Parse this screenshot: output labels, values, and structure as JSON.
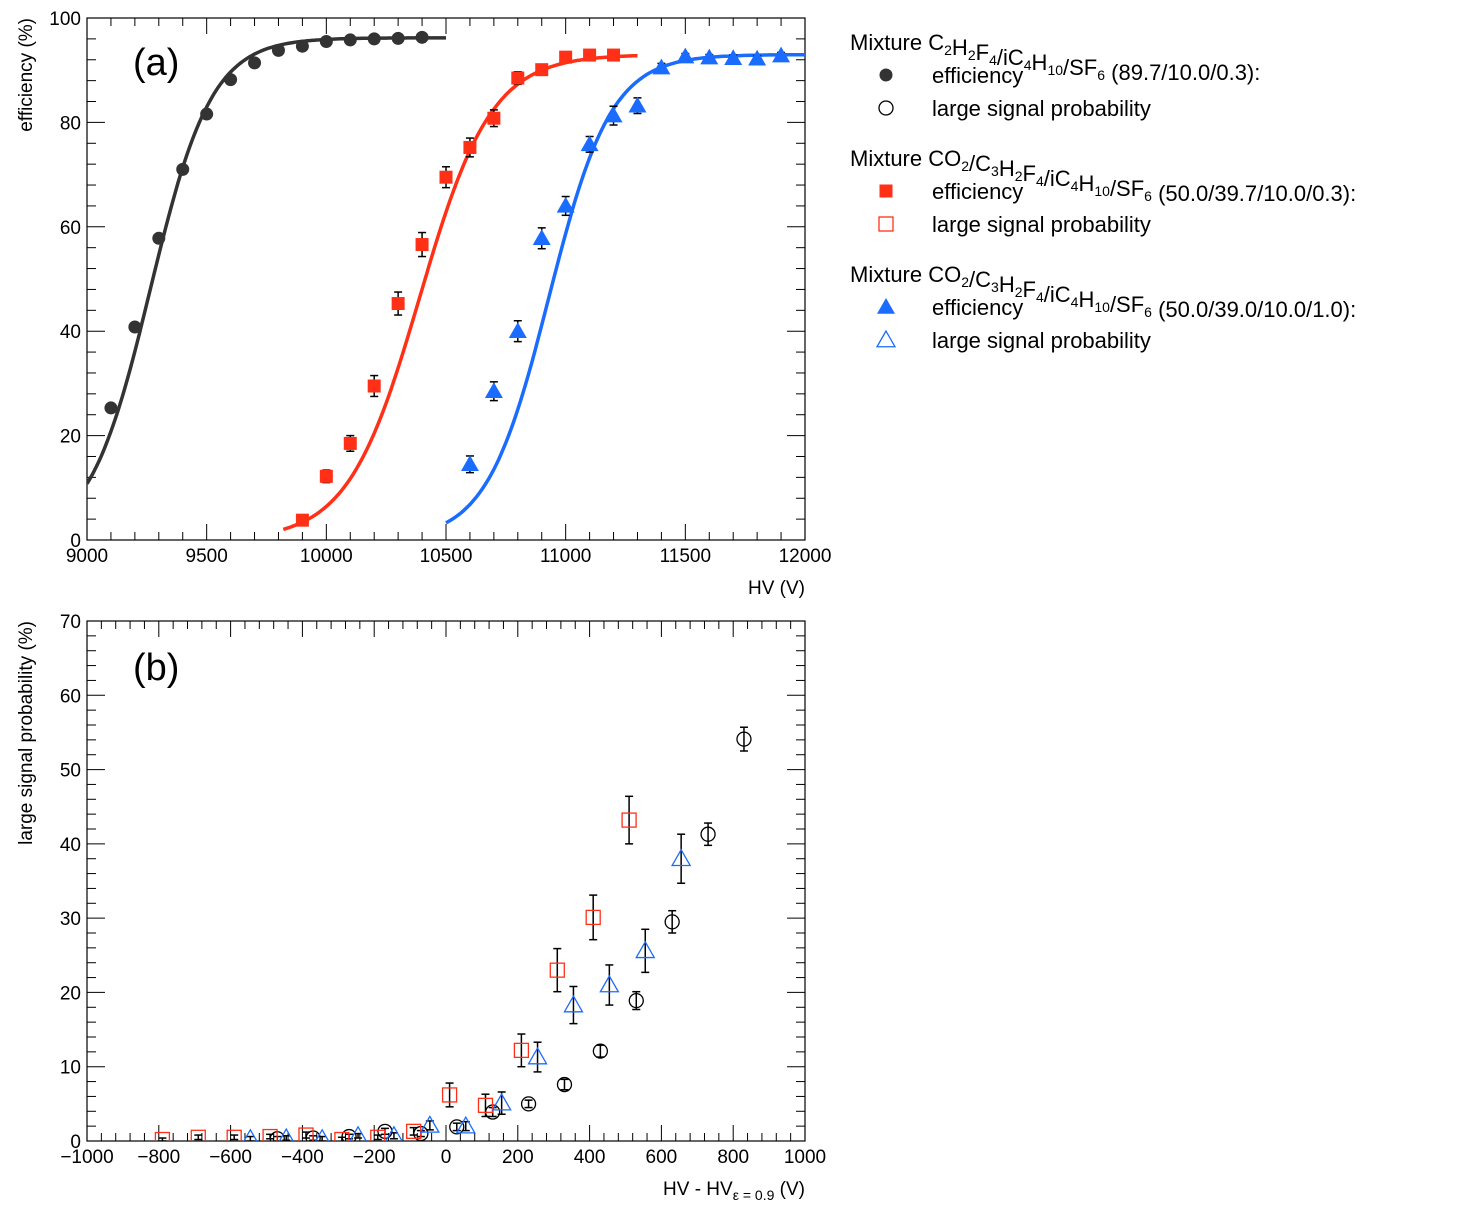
{
  "chart_data": [
    {
      "id": "a",
      "type": "scatter",
      "panel_label": "(a)",
      "xlabel": "HV (V)",
      "ylabel": "efficiency (%)",
      "xlim": [
        9000,
        12000
      ],
      "ylim": [
        0,
        100
      ],
      "xticks": [
        "9000",
        "9500",
        "10000",
        "10500",
        "11000",
        "11500",
        "12000"
      ],
      "yticks": [
        "0",
        "20",
        "40",
        "60",
        "80",
        "100"
      ],
      "series": [
        {
          "name": "Mixture C2H2F4/iC4H10/SF6 (89.7/10.0/0.3): efficiency",
          "marker": "filled-circle",
          "color": "#333333",
          "x": [
            9100,
            9200,
            9300,
            9400,
            9500,
            9600,
            9700,
            9800,
            9900,
            10000,
            10100,
            10200,
            10300,
            10400
          ],
          "y": [
            25.3,
            40.8,
            57.8,
            71.0,
            81.6,
            88.2,
            91.4,
            93.8,
            94.6,
            95.5,
            95.8,
            96.0,
            96.1,
            96.3
          ],
          "fit": {
            "x_range": [
              9000,
              10500
            ],
            "max": 96.2,
            "mid": 9265,
            "width": 128
          }
        },
        {
          "name": "Mixture CO2/C3H2F4/iC4H10/SF6 (50.0/39.7/10.0/0.3): efficiency",
          "marker": "filled-square",
          "color": "#ff3016",
          "x": [
            9900,
            10000,
            10100,
            10200,
            10300,
            10400,
            10500,
            10600,
            10700,
            10800,
            10900,
            11000,
            11100,
            11200
          ],
          "y": [
            3.8,
            12.2,
            18.5,
            29.5,
            45.3,
            56.6,
            69.5,
            75.2,
            80.8,
            88.5,
            90.1,
            92.5,
            92.9,
            92.9
          ],
          "err": [
            0.6,
            1.2,
            1.5,
            2.0,
            2.2,
            2.3,
            2.0,
            1.8,
            1.6,
            1.2,
            1.0,
            0.8,
            0.8,
            0.8
          ],
          "fit": {
            "x_range": [
              9820,
              11300
            ],
            "max": 93.0,
            "mid": 10390,
            "width": 150
          }
        },
        {
          "name": "Mixture CO2/C3H2F4/iC4H10/SF6 (50.0/39.0/10.0/1.0): efficiency",
          "marker": "filled-triangle",
          "color": "#1a6cff",
          "x": [
            10600,
            10700,
            10800,
            10900,
            11000,
            11100,
            11200,
            11300,
            11400,
            11500,
            11600,
            11700,
            11800,
            11900
          ],
          "y": [
            14.5,
            28.5,
            40.0,
            57.8,
            64.0,
            75.8,
            81.3,
            83.2,
            90.5,
            92.6,
            92.4,
            92.3,
            92.2,
            92.8
          ],
          "err": [
            1.6,
            1.8,
            2.0,
            2.0,
            1.8,
            1.5,
            1.8,
            1.5,
            0.8,
            0.6,
            0.6,
            0.6,
            0.6,
            0.6
          ],
          "fit": {
            "x_range": [
              10500,
              12000
            ],
            "max": 93.0,
            "mid": 10930,
            "width": 130
          }
        }
      ]
    },
    {
      "id": "b",
      "type": "scatter",
      "panel_label": "(b)",
      "xlabel": "HV - HV",
      "xlabel_sub": "ε = 0.9",
      "xlabel_unit": " (V)",
      "ylabel": "large signal probability (%)",
      "xlim": [
        -1000,
        1000
      ],
      "ylim": [
        0,
        70
      ],
      "xticks": [
        "−1000",
        "−800",
        "−600",
        "−400",
        "−200",
        "0",
        "200",
        "400",
        "600",
        "800",
        "1000"
      ],
      "yticks": [
        "0",
        "10",
        "20",
        "30",
        "40",
        "50",
        "60",
        "70"
      ],
      "series": [
        {
          "name": "Mixture C2H2F4/iC4H10/SF6 (89.7/10.0/0.3): large signal probability",
          "marker": "open-circle",
          "color": "#000000",
          "x": [
            -470,
            -370,
            -270,
            -170,
            -70,
            30,
            130,
            230,
            330,
            430,
            530,
            630,
            730,
            830
          ],
          "y": [
            0.3,
            0.4,
            0.6,
            1.3,
            1.0,
            1.9,
            3.9,
            5.0,
            7.6,
            12.1,
            18.9,
            29.5,
            41.3,
            54.1
          ],
          "err": [
            0.3,
            0.3,
            0.3,
            0.4,
            0.4,
            0.5,
            0.6,
            0.5,
            0.7,
            0.8,
            1.2,
            1.5,
            1.5,
            1.6
          ]
        },
        {
          "name": "Mixture CO2/C3H2F4/iC4H10/SF6 (50.0/39.7/10.0/0.3): large signal probability",
          "marker": "open-square",
          "color": "#ff3016",
          "x": [
            -790,
            -690,
            -590,
            -490,
            -390,
            -290,
            -190,
            -90,
            10,
            110,
            210,
            310,
            410,
            510
          ],
          "y": [
            0.2,
            0.5,
            0.5,
            0.6,
            0.8,
            0.2,
            0.5,
            1.3,
            6.2,
            4.8,
            12.2,
            23.0,
            30.1,
            43.2
          ],
          "err": [
            0.2,
            0.3,
            0.3,
            0.3,
            0.4,
            0.3,
            0.3,
            0.5,
            1.6,
            1.5,
            2.2,
            2.9,
            3.0,
            3.2
          ]
        },
        {
          "name": "Mixture CO2/C3H2F4/iC4H10/SF6 (50.0/39.0/10.0/1.0): large signal probability",
          "marker": "open-triangle",
          "color": "#1a6cff",
          "x": [
            -545,
            -445,
            -345,
            -245,
            -145,
            -45,
            55,
            155,
            255,
            355,
            455,
            555,
            655
          ],
          "y": [
            0.3,
            0.4,
            0.3,
            0.7,
            0.7,
            2.1,
            2.0,
            5.1,
            11.3,
            18.3,
            21.0,
            25.6,
            38.0
          ],
          "err": [
            0.3,
            0.3,
            0.3,
            0.3,
            0.4,
            0.6,
            0.6,
            1.5,
            2.0,
            2.5,
            2.7,
            2.9,
            3.3
          ]
        }
      ]
    }
  ],
  "legend": {
    "groups": [
      {
        "title_parts": [
          [
            "Mixture C",
            ""
          ],
          [
            "2",
            "sub"
          ],
          [
            "H",
            ""
          ],
          [
            "2",
            "sub"
          ],
          [
            "F",
            ""
          ],
          [
            "4",
            "sub"
          ],
          [
            "/iC",
            ""
          ],
          [
            "4",
            "sub"
          ],
          [
            "H",
            ""
          ],
          [
            "10",
            "sub"
          ],
          [
            "/SF",
            ""
          ],
          [
            "6",
            "sub"
          ],
          [
            " (89.7/10.0/0.3):",
            ""
          ]
        ],
        "color": "#333333",
        "entries": [
          {
            "marker": "filled-circle",
            "label": "efficiency"
          },
          {
            "marker": "open-circle",
            "label": "large signal probability"
          }
        ]
      },
      {
        "title_parts": [
          [
            "Mixture CO",
            ""
          ],
          [
            "2",
            "sub"
          ],
          [
            "/C",
            ""
          ],
          [
            "3",
            "sub"
          ],
          [
            "H",
            ""
          ],
          [
            "2",
            "sub"
          ],
          [
            "F",
            ""
          ],
          [
            "4",
            "sub"
          ],
          [
            "/iC",
            ""
          ],
          [
            "4",
            "sub"
          ],
          [
            "H",
            ""
          ],
          [
            "10",
            "sub"
          ],
          [
            "/SF",
            ""
          ],
          [
            "6",
            "sub"
          ],
          [
            " (50.0/39.7/10.0/0.3):",
            ""
          ]
        ],
        "color": "#ff3016",
        "entries": [
          {
            "marker": "filled-square",
            "label": "efficiency"
          },
          {
            "marker": "open-square",
            "label": "large signal probability"
          }
        ]
      },
      {
        "title_parts": [
          [
            "Mixture CO",
            ""
          ],
          [
            "2",
            "sub"
          ],
          [
            "/C",
            ""
          ],
          [
            "3",
            "sub"
          ],
          [
            "H",
            ""
          ],
          [
            "2",
            "sub"
          ],
          [
            "F",
            ""
          ],
          [
            "4",
            "sub"
          ],
          [
            "/iC",
            ""
          ],
          [
            "4",
            "sub"
          ],
          [
            "H",
            ""
          ],
          [
            "10",
            "sub"
          ],
          [
            "/SF",
            ""
          ],
          [
            "6",
            "sub"
          ],
          [
            " (50.0/39.0/10.0/1.0):",
            ""
          ]
        ],
        "color": "#1a6cff",
        "entries": [
          {
            "marker": "filled-triangle",
            "label": "efficiency"
          },
          {
            "marker": "open-triangle",
            "label": "large signal probability"
          }
        ]
      }
    ]
  }
}
